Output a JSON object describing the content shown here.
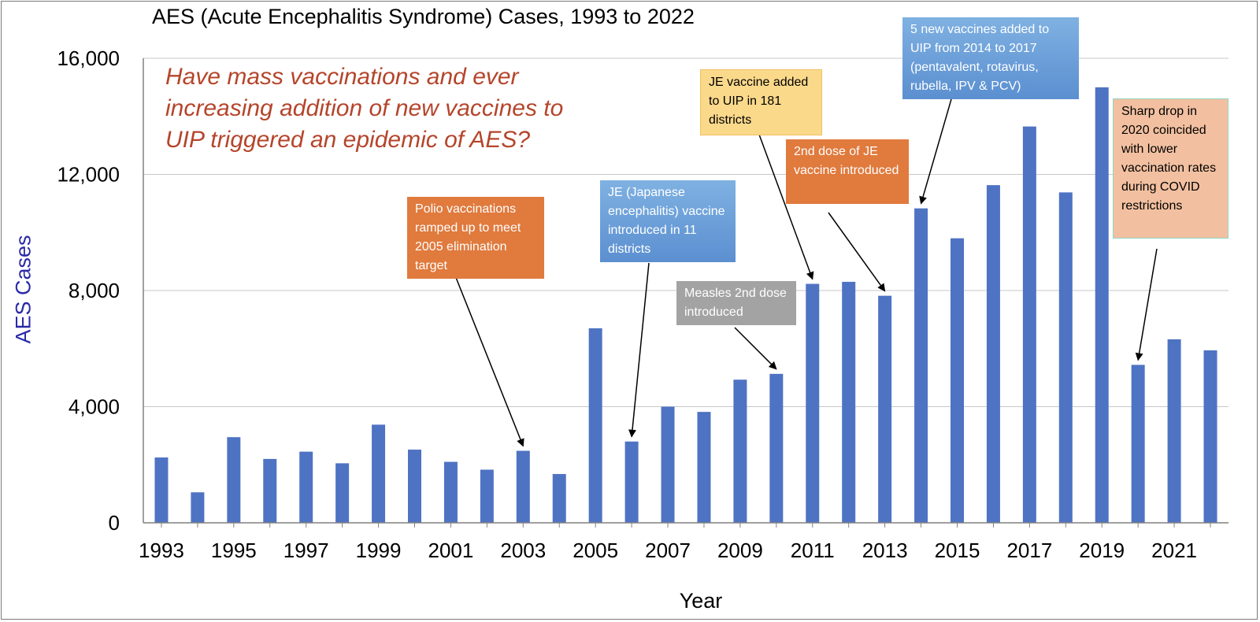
{
  "title": "AES (Acute Encephalitis Syndrome) Cases, 1993 to 2022",
  "question": "Have mass vaccinations and ever increasing addition of new vaccines to UIP triggered an epidemic of AES?",
  "colors": {
    "bar": "#4f73c3",
    "question": "#b5452b",
    "ylabel": "#2a2aa8",
    "grid": "#c8c8c8"
  },
  "chart_data": {
    "type": "bar",
    "title": "AES (Acute Encephalitis Syndrome) Cases, 1993 to 2022",
    "xlabel": "Year",
    "ylabel": "AES Cases",
    "ylim": [
      0,
      16000
    ],
    "y_ticks": [
      "0",
      "4,000",
      "8,000",
      "12,000",
      "16,000"
    ],
    "y_tick_values": [
      0,
      4000,
      8000,
      12000,
      16000
    ],
    "x_tick_labels": [
      "1993",
      "1995",
      "1997",
      "1999",
      "2001",
      "2003",
      "2005",
      "2007",
      "2009",
      "2011",
      "2013",
      "2015",
      "2017",
      "2019",
      "2021"
    ],
    "grid": true,
    "legend": "none",
    "categories": [
      "1993",
      "1994",
      "1995",
      "1996",
      "1997",
      "1998",
      "1999",
      "2000",
      "2001",
      "2002",
      "2003",
      "2004",
      "2005",
      "2006",
      "2007",
      "2008",
      "2009",
      "2010",
      "2011",
      "2012",
      "2013",
      "2014",
      "2015",
      "2016",
      "2017",
      "2018",
      "2019",
      "2020",
      "2021",
      "2022"
    ],
    "values": [
      2250,
      1050,
      2950,
      2200,
      2450,
      2050,
      3380,
      2520,
      2100,
      1830,
      2480,
      1680,
      6700,
      2800,
      4000,
      3820,
      4930,
      5130,
      8230,
      8300,
      7820,
      10830,
      9800,
      11630,
      13650,
      11380,
      15000,
      5440,
      6320,
      5940
    ],
    "annotations": [
      {
        "id": "polio",
        "text": "Polio vaccinations ramped up to meet 2005 elimination target",
        "year": "2003"
      },
      {
        "id": "je_intro",
        "text": "JE (Japanese encephalitis) vaccine introduced in 11 districts",
        "year": "2006"
      },
      {
        "id": "measles",
        "text": "Measles 2nd dose introduced",
        "year": "2010"
      },
      {
        "id": "je_181",
        "text": "JE vaccine added to UIP in 181 districts",
        "year": "2011"
      },
      {
        "id": "je_2nd",
        "text": "2nd dose of JE vaccine introduced",
        "year": "2013"
      },
      {
        "id": "five_vaccines",
        "text": "5 new vaccines added to UIP from 2014 to 2017 (pentavalent, rotavirus, rubella, IPV & PCV)",
        "year": "2014"
      },
      {
        "id": "covid",
        "text": "Sharp drop in 2020 coincided with lower vaccination rates during COVID restrictions",
        "year": "2020"
      }
    ]
  }
}
